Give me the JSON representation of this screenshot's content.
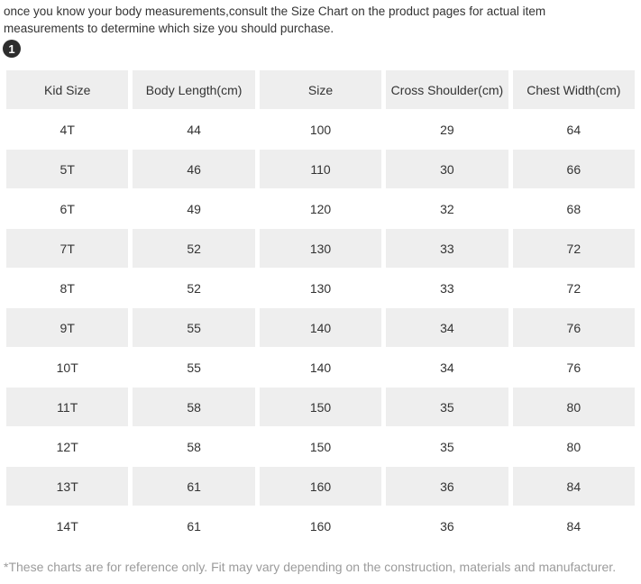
{
  "page": {
    "intro_text": "once you know your body measurements,consult the Size Chart on the product pages for actual item measurements to determine which size you should purchase.",
    "step_badge": "1",
    "footnote": "*These charts are for reference only. Fit may vary depending on the construction, materials and manufacturer."
  },
  "size_chart": {
    "columns": [
      "Kid Size",
      "Body Length(cm)",
      "Size",
      "Cross Shoulder(cm)",
      "Chest Width(cm)"
    ],
    "rows": [
      [
        "4T",
        "44",
        "100",
        "29",
        "64"
      ],
      [
        "5T",
        "46",
        "110",
        "30",
        "66"
      ],
      [
        "6T",
        "49",
        "120",
        "32",
        "68"
      ],
      [
        "7T",
        "52",
        "130",
        "33",
        "72"
      ],
      [
        "8T",
        "52",
        "130",
        "33",
        "72"
      ],
      [
        "9T",
        "55",
        "140",
        "34",
        "76"
      ],
      [
        "10T",
        "55",
        "140",
        "34",
        "76"
      ],
      [
        "11T",
        "58",
        "150",
        "35",
        "80"
      ],
      [
        "12T",
        "58",
        "150",
        "35",
        "80"
      ],
      [
        "13T",
        "61",
        "160",
        "36",
        "84"
      ],
      [
        "14T",
        "61",
        "160",
        "36",
        "84"
      ]
    ]
  },
  "colors": {
    "cell_bg": "#eeeeee",
    "text": "#333333",
    "footnote_text": "#9b9b9b",
    "badge_bg": "#2d2d2d"
  }
}
